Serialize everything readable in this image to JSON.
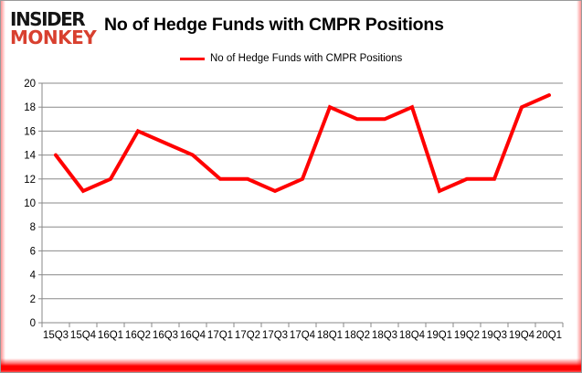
{
  "branding": {
    "logo_line1": "INSIDER",
    "logo_line2": "MONKEY",
    "logo_color_top": "#151515",
    "logo_color_bottom": "#d8402f"
  },
  "header": {
    "title": "No of Hedge Funds with CMPR Positions"
  },
  "legend": {
    "label": "No of Hedge Funds with CMPR Positions",
    "swatch_color": "#ff0000"
  },
  "colors": {
    "series_line": "#ff0000",
    "gridline": "#898989",
    "axis": "#898989",
    "tick_label": "#000000",
    "background": "#ffffff"
  },
  "chart_data": {
    "type": "line",
    "title": "No of Hedge Funds with CMPR Positions",
    "categories": [
      "15Q3",
      "15Q4",
      "16Q1",
      "16Q2",
      "16Q3",
      "16Q4",
      "17Q1",
      "17Q2",
      "17Q3",
      "17Q4",
      "18Q1",
      "18Q2",
      "18Q3",
      "18Q4",
      "19Q1",
      "19Q2",
      "19Q3",
      "19Q4",
      "20Q1"
    ],
    "series": [
      {
        "name": "No of Hedge Funds with CMPR Positions",
        "color": "#ff0000",
        "values": [
          14,
          11,
          12,
          16,
          15,
          14,
          12,
          12,
          11,
          12,
          18,
          17,
          17,
          18,
          11,
          12,
          12,
          18,
          19
        ]
      }
    ],
    "xlabel": "",
    "ylabel": "",
    "ylim": [
      0,
      20
    ],
    "ytick_step": 2,
    "yticks": [
      0,
      2,
      4,
      6,
      8,
      10,
      12,
      14,
      16,
      18,
      20
    ],
    "grid": true,
    "legend_position": "top"
  }
}
